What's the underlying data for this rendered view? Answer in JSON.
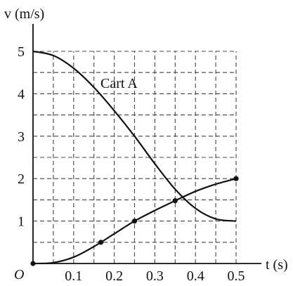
{
  "chart_data": {
    "type": "line",
    "xlabel": "t (s)",
    "ylabel": "v (m/s)",
    "origin_label": "O",
    "xlim": [
      0,
      0.5
    ],
    "ylim": [
      0,
      5
    ],
    "x_ticks": [
      "0.1",
      "0.2",
      "0.3",
      "0.4",
      "0.5"
    ],
    "x_tick_values": [
      0.1,
      0.2,
      0.3,
      0.4,
      0.5
    ],
    "y_ticks": [
      "1",
      "2",
      "3",
      "4",
      "5"
    ],
    "y_tick_values": [
      1,
      2,
      3,
      4,
      5
    ],
    "grid": true,
    "grid_step": {
      "x": 0.05,
      "y": 0.5
    },
    "series": [
      {
        "name": "Cart A",
        "x": [
          0,
          0.05,
          0.1,
          0.15,
          0.2,
          0.25,
          0.3,
          0.35,
          0.4,
          0.45,
          0.5
        ],
        "y": [
          5,
          4.9,
          4.6,
          4.15,
          3.6,
          3.0,
          2.35,
          1.75,
          1.3,
          1.05,
          1.0
        ]
      },
      {
        "name": "",
        "x": [
          0,
          0.05,
          0.1,
          0.15,
          0.2,
          0.25,
          0.3,
          0.35,
          0.4,
          0.45,
          0.5
        ],
        "y": [
          0,
          0.02,
          0.15,
          0.4,
          0.7,
          1.0,
          1.25,
          1.48,
          1.7,
          1.87,
          2.0
        ],
        "markers": [
          {
            "x": 0,
            "y": 0
          },
          {
            "x": 0.167,
            "y": 0.5
          },
          {
            "x": 0.25,
            "y": 1.0
          },
          {
            "x": 0.35,
            "y": 1.48
          },
          {
            "x": 0.5,
            "y": 2.0
          }
        ]
      }
    ]
  }
}
